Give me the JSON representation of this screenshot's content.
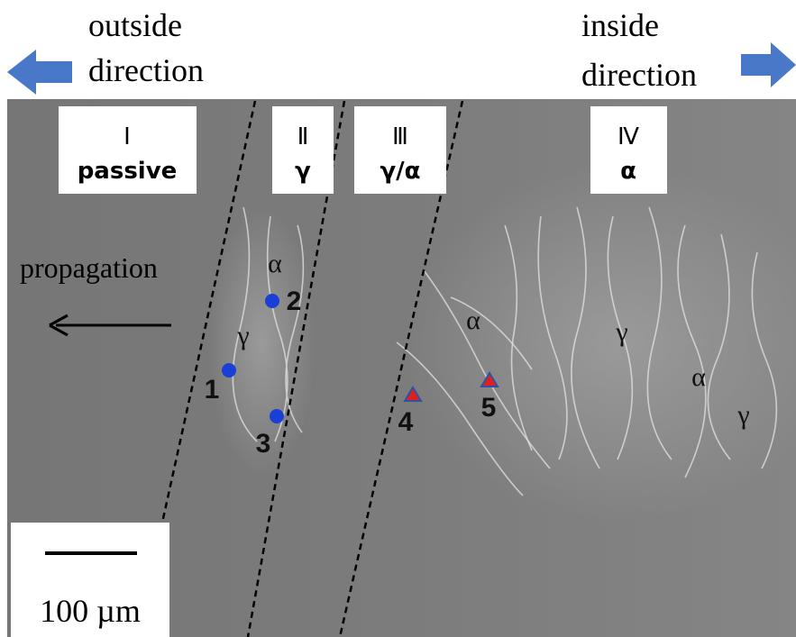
{
  "directions": {
    "outside": [
      "outside",
      "direction"
    ],
    "inside": [
      "inside",
      "direction"
    ]
  },
  "regions": [
    {
      "numeral": "Ⅰ",
      "label": "passive"
    },
    {
      "numeral": "Ⅱ",
      "label": "γ"
    },
    {
      "numeral": "Ⅲ",
      "label": "γ/α"
    },
    {
      "numeral": "Ⅳ",
      "label": "α"
    }
  ],
  "propagation": "propagation",
  "phase_labels": [
    "α",
    "γ",
    "α",
    "γ",
    "α",
    "γ"
  ],
  "points": [
    "1",
    "2",
    "3",
    "4",
    "5"
  ],
  "scale_bar": "100 µm"
}
